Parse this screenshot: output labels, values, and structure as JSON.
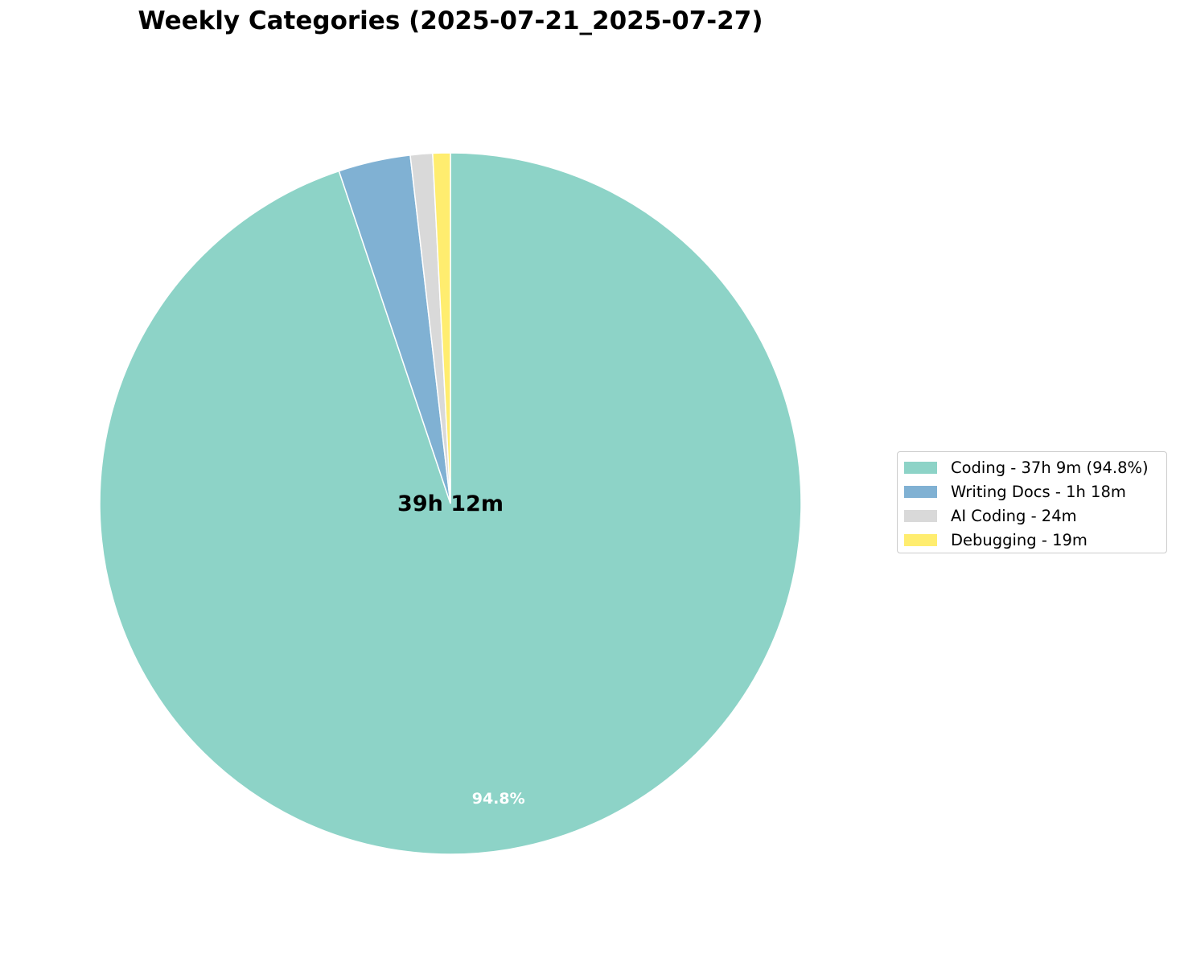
{
  "chart_data": {
    "type": "pie",
    "title": "Weekly Categories (2025-07-21_2025-07-27)",
    "center_label": "39h 12m",
    "slices": [
      {
        "label": "Coding",
        "legend": "Coding - 37h 9m (94.8%)",
        "minutes": 2229,
        "percent": 94.8,
        "color": "#8dd3c7",
        "pct_label": "94.8%"
      },
      {
        "label": "Writing Docs",
        "legend": "Writing Docs - 1h 18m",
        "minutes": 78,
        "color": "#80b1d3"
      },
      {
        "label": "AI Coding",
        "legend": "AI Coding - 24m",
        "minutes": 24,
        "color": "#d9d9d9"
      },
      {
        "label": "Debugging",
        "legend": "Debugging - 19m",
        "minutes": 19,
        "color": "#ffed6f"
      }
    ],
    "start_angle": "top",
    "direction": "clockwise",
    "legend_position": "right"
  }
}
